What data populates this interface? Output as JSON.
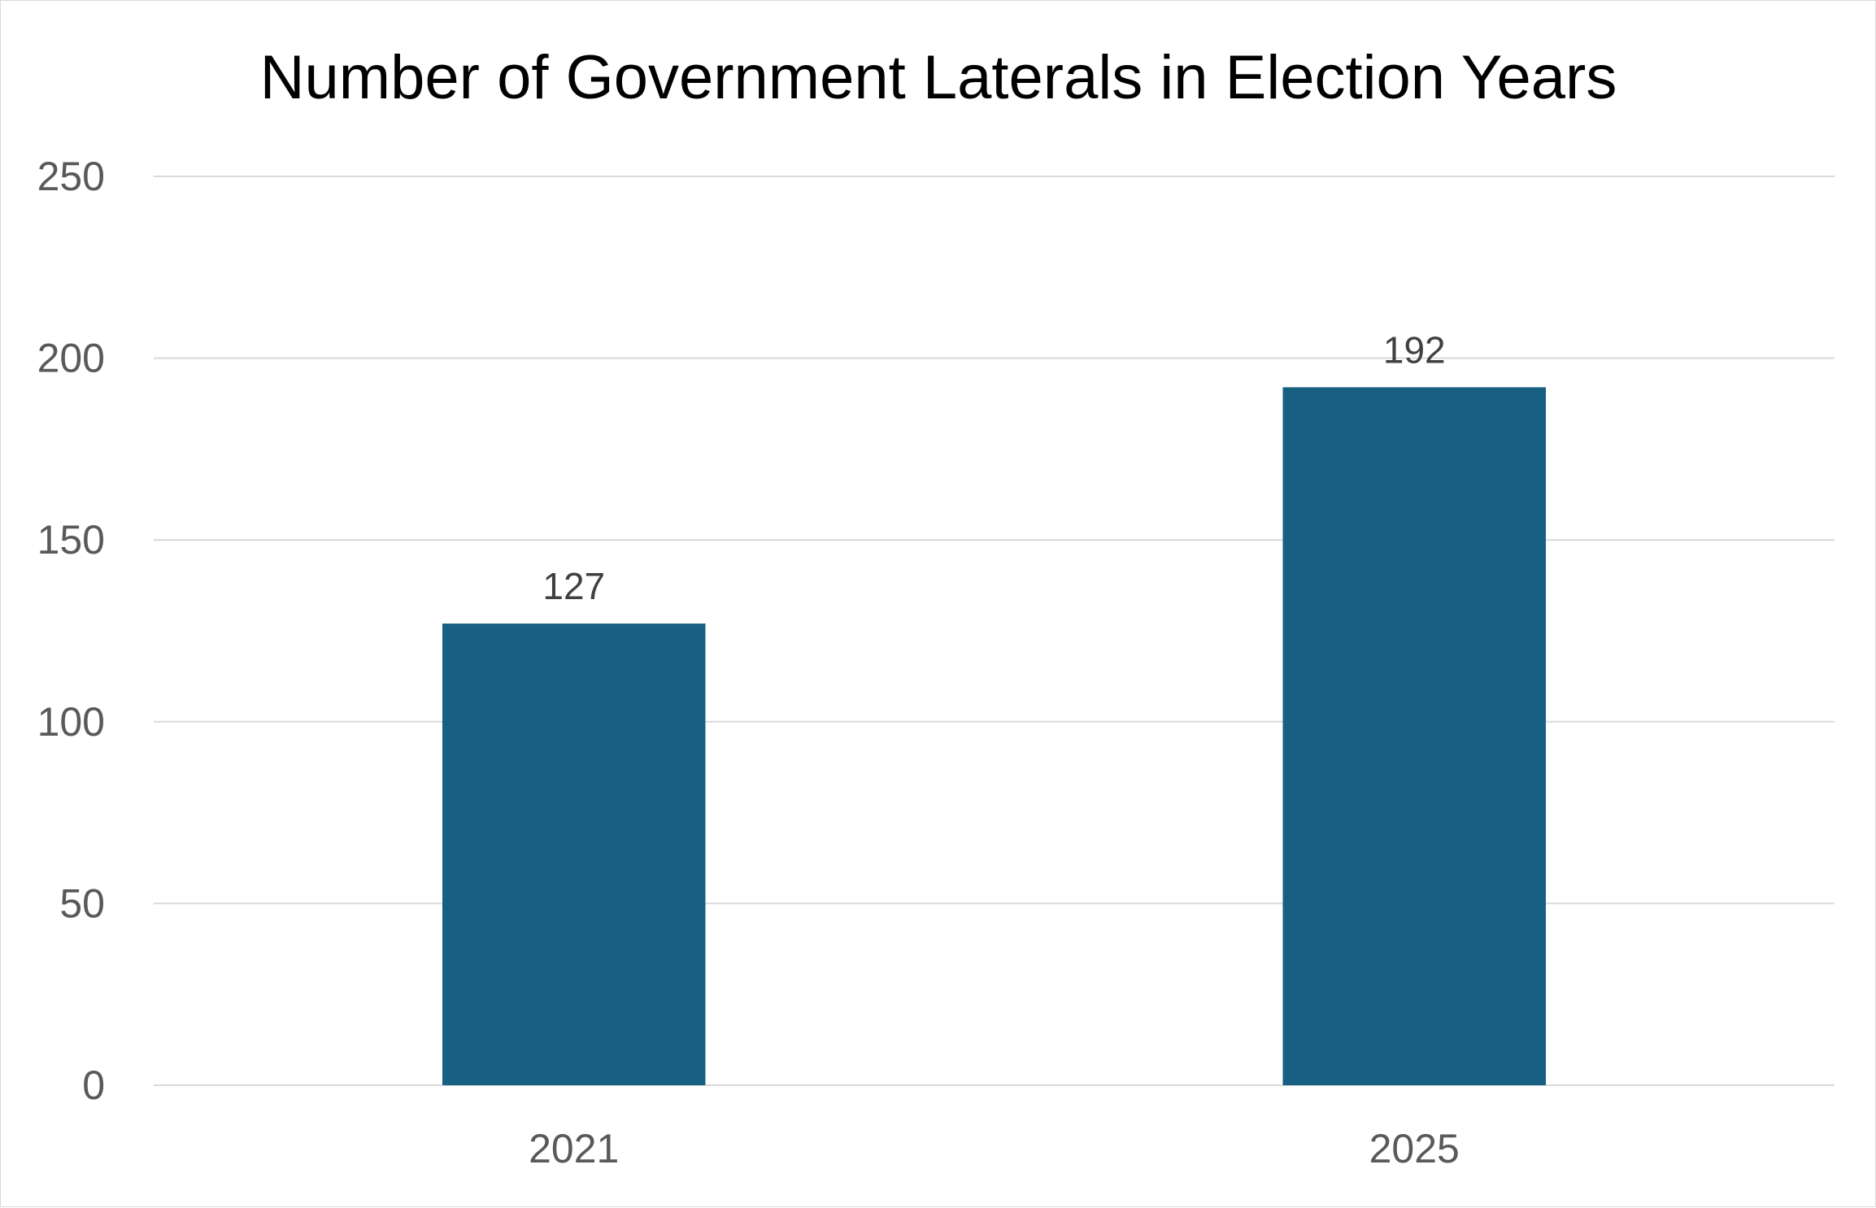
{
  "chart_data": {
    "type": "bar",
    "title": "Number of Government Laterals in Election Years",
    "categories": [
      "2021",
      "2025"
    ],
    "values": [
      127,
      192
    ],
    "data_labels": [
      "127",
      "192"
    ],
    "xlabel": "",
    "ylabel": "",
    "ylim": [
      0,
      250
    ],
    "yticks": [
      0,
      50,
      100,
      150,
      200,
      250
    ],
    "ytick_labels": [
      "0",
      "50",
      "100",
      "150",
      "200",
      "250"
    ],
    "grid": true,
    "legend": "none",
    "bar_color": "#176083",
    "grid_color": "#d9d9d9"
  }
}
